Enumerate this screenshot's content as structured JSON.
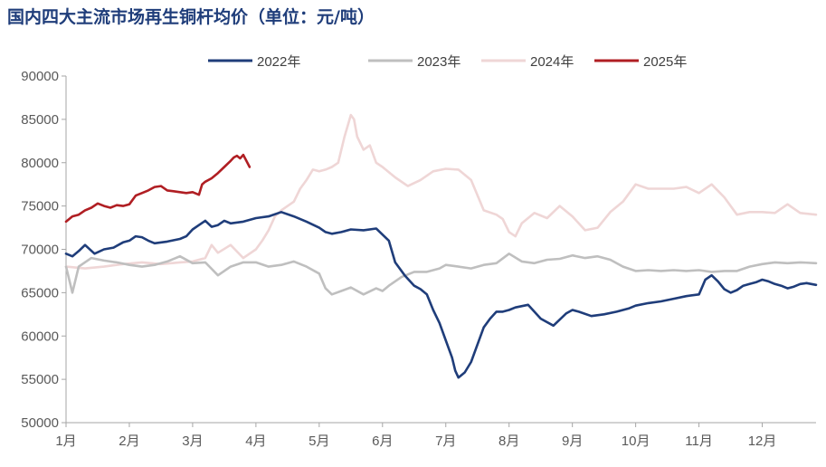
{
  "chart_data": {
    "type": "line",
    "title": "国内四大主流市场再生铜杆均价（单位：元/吨）",
    "xlabel": "",
    "ylabel": "",
    "x_ticks": [
      "1月",
      "2月",
      "3月",
      "4月",
      "5月",
      "6月",
      "7月",
      "8月",
      "9月",
      "10月",
      "11月",
      "12月"
    ],
    "xlim": [
      1,
      12.85
    ],
    "ylim": [
      50000,
      90000
    ],
    "y_ticks": [
      50000,
      55000,
      60000,
      65000,
      70000,
      75000,
      80000,
      85000,
      90000
    ],
    "legend_position": "top-center",
    "grid": false,
    "series": [
      {
        "name": "2022年",
        "color": "#1F3D7A",
        "x": [
          1.0,
          1.1,
          1.2,
          1.3,
          1.45,
          1.6,
          1.75,
          1.9,
          2.0,
          2.1,
          2.2,
          2.3,
          2.4,
          2.6,
          2.8,
          2.9,
          3.0,
          3.1,
          3.2,
          3.3,
          3.4,
          3.5,
          3.6,
          3.8,
          4.0,
          4.2,
          4.4,
          4.6,
          4.8,
          5.0,
          5.1,
          5.2,
          5.35,
          5.5,
          5.7,
          5.9,
          6.1,
          6.2,
          6.35,
          6.5,
          6.6,
          6.7,
          6.8,
          6.9,
          7.0,
          7.1,
          7.15,
          7.2,
          7.3,
          7.4,
          7.5,
          7.6,
          7.7,
          7.8,
          7.9,
          8.0,
          8.1,
          8.3,
          8.5,
          8.7,
          8.9,
          9.0,
          9.1,
          9.3,
          9.5,
          9.7,
          9.9,
          10.0,
          10.2,
          10.4,
          10.6,
          10.8,
          11.0,
          11.1,
          11.2,
          11.3,
          11.4,
          11.5,
          11.6,
          11.7,
          11.8,
          11.9,
          12.0,
          12.1,
          12.2,
          12.3,
          12.4,
          12.5,
          12.6,
          12.7,
          12.85
        ],
        "values": [
          69500,
          69200,
          69800,
          70500,
          69500,
          70000,
          70200,
          70800,
          71000,
          71500,
          71400,
          71000,
          70700,
          70900,
          71200,
          71500,
          72300,
          72800,
          73300,
          72600,
          72800,
          73300,
          73000,
          73200,
          73600,
          73800,
          74300,
          73800,
          73200,
          72500,
          72000,
          71800,
          72000,
          72300,
          72200,
          72400,
          71000,
          68500,
          67000,
          65800,
          65400,
          64800,
          63000,
          61500,
          59500,
          57500,
          56000,
          55200,
          55800,
          57000,
          59000,
          61000,
          62000,
          62800,
          62800,
          63000,
          63300,
          63600,
          62000,
          61200,
          62600,
          63000,
          62800,
          62300,
          62500,
          62800,
          63200,
          63500,
          63800,
          64000,
          64300,
          64600,
          64800,
          66500,
          67000,
          66300,
          65400,
          65000,
          65300,
          65800,
          66000,
          66200,
          66500,
          66300,
          66000,
          65800,
          65500,
          65700,
          66000,
          66100,
          65900
        ]
      },
      {
        "name": "2023年",
        "color": "#BFBFBF",
        "x": [
          1.0,
          1.1,
          1.2,
          1.4,
          1.6,
          1.8,
          2.0,
          2.2,
          2.4,
          2.6,
          2.8,
          3.0,
          3.2,
          3.4,
          3.6,
          3.8,
          4.0,
          4.2,
          4.4,
          4.6,
          4.8,
          5.0,
          5.1,
          5.2,
          5.35,
          5.5,
          5.7,
          5.9,
          6.0,
          6.1,
          6.3,
          6.5,
          6.7,
          6.9,
          7.0,
          7.2,
          7.4,
          7.6,
          7.8,
          8.0,
          8.2,
          8.4,
          8.6,
          8.8,
          9.0,
          9.2,
          9.4,
          9.6,
          9.8,
          10.0,
          10.2,
          10.4,
          10.6,
          10.8,
          11.0,
          11.2,
          11.4,
          11.6,
          11.8,
          12.0,
          12.2,
          12.4,
          12.6,
          12.85
        ],
        "values": [
          68000,
          65000,
          68000,
          69000,
          68700,
          68500,
          68200,
          68000,
          68200,
          68600,
          69200,
          68400,
          68500,
          67000,
          68000,
          68500,
          68500,
          68000,
          68200,
          68600,
          68000,
          67200,
          65500,
          64800,
          65200,
          65600,
          64800,
          65500,
          65200,
          65800,
          66800,
          67400,
          67400,
          67800,
          68200,
          68000,
          67800,
          68200,
          68400,
          69500,
          68600,
          68400,
          68800,
          68900,
          69300,
          69000,
          69200,
          68800,
          68000,
          67500,
          67600,
          67500,
          67600,
          67500,
          67600,
          67400,
          67500,
          67500,
          68000,
          68300,
          68500,
          68400,
          68500,
          68400
        ]
      },
      {
        "name": "2024年",
        "color": "#EFD6D6",
        "x": [
          1.0,
          1.3,
          1.6,
          1.9,
          2.2,
          2.5,
          2.8,
          3.0,
          3.2,
          3.3,
          3.4,
          3.6,
          3.8,
          4.0,
          4.1,
          4.2,
          4.3,
          4.4,
          4.5,
          4.6,
          4.7,
          4.8,
          4.9,
          5.0,
          5.1,
          5.2,
          5.3,
          5.4,
          5.5,
          5.55,
          5.6,
          5.7,
          5.8,
          5.9,
          6.0,
          6.2,
          6.4,
          6.6,
          6.8,
          7.0,
          7.2,
          7.4,
          7.6,
          7.8,
          7.9,
          8.0,
          8.1,
          8.2,
          8.4,
          8.6,
          8.8,
          9.0,
          9.2,
          9.4,
          9.6,
          9.8,
          10.0,
          10.2,
          10.4,
          10.6,
          10.8,
          11.0,
          11.2,
          11.4,
          11.6,
          11.8,
          12.0,
          12.2,
          12.4,
          12.6,
          12.85
        ],
        "values": [
          68000,
          67800,
          68000,
          68300,
          68500,
          68300,
          68500,
          68600,
          69000,
          70500,
          69600,
          70500,
          69000,
          70000,
          71000,
          72200,
          73800,
          74500,
          75000,
          75500,
          77000,
          78000,
          79200,
          79000,
          79200,
          79500,
          80000,
          83000,
          85500,
          85000,
          83000,
          81500,
          82000,
          80000,
          79500,
          78300,
          77300,
          78000,
          79000,
          79300,
          79200,
          78000,
          74500,
          74000,
          73500,
          72000,
          71500,
          73000,
          74200,
          73600,
          75000,
          73800,
          72200,
          72500,
          74300,
          75500,
          77500,
          77000,
          77000,
          77000,
          77200,
          76500,
          77500,
          76000,
          74000,
          74300,
          74300,
          74200,
          75200,
          74200,
          74000
        ]
      },
      {
        "name": "2025年",
        "color": "#B01E23",
        "x": [
          1.0,
          1.1,
          1.2,
          1.3,
          1.4,
          1.5,
          1.6,
          1.7,
          1.8,
          1.9,
          2.0,
          2.1,
          2.2,
          2.3,
          2.4,
          2.5,
          2.6,
          2.7,
          2.8,
          2.9,
          3.0,
          3.1,
          3.15,
          3.2,
          3.3,
          3.4,
          3.5,
          3.6,
          3.65,
          3.7,
          3.75,
          3.8,
          3.9
        ],
        "values": [
          73200,
          73800,
          74000,
          74500,
          74800,
          75300,
          75000,
          74800,
          75100,
          75000,
          75200,
          76200,
          76500,
          76800,
          77200,
          77300,
          76800,
          76700,
          76600,
          76500,
          76600,
          76300,
          77500,
          77800,
          78200,
          78800,
          79500,
          80200,
          80600,
          80800,
          80500,
          80900,
          79500
        ]
      }
    ]
  }
}
